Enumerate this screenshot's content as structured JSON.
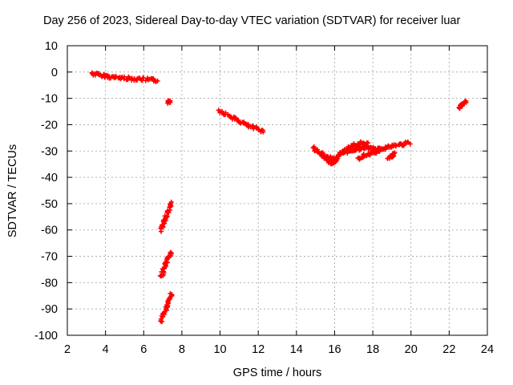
{
  "chart_data": {
    "type": "scatter",
    "title": "Day 256 of 2023, Sidereal Day-to-day VTEC variation (SDTVAR) for receiver luar",
    "xlabel": "GPS time / hours",
    "ylabel": "SDTVAR / TECUs",
    "xlim": [
      2,
      24
    ],
    "ylim": [
      -100,
      10
    ],
    "x_ticks": [
      "2",
      "4",
      "6",
      "8",
      "10",
      "12",
      "14",
      "16",
      "18",
      "20",
      "22",
      "24"
    ],
    "y_ticks": [
      "10",
      "0",
      "-10",
      "-20",
      "-30",
      "-40",
      "-50",
      "-60",
      "-70",
      "-80",
      "-90",
      "-100"
    ],
    "grid": true,
    "marker": "cross",
    "series_color": "#ff0000",
    "series": [
      {
        "segments": [
          {
            "x": [
              3.3,
              3.6,
              4.0,
              4.4,
              4.8,
              5.2,
              5.6,
              6.0,
              6.4,
              6.7
            ],
            "y": [
              -0.5,
              -1.0,
              -1.5,
              -2.0,
              -2.2,
              -2.4,
              -2.6,
              -2.8,
              -3.0,
              -3.2
            ]
          },
          {
            "x": [
              7.3,
              7.4
            ],
            "y": [
              -11.5,
              -11.0
            ]
          },
          {
            "x": [
              9.9,
              10.3,
              10.7,
              11.1,
              11.5,
              11.9,
              12.3
            ],
            "y": [
              -14.5,
              -16.0,
              -17.5,
              -19.0,
              -20.5,
              -21.5,
              -22.5
            ]
          },
          {
            "x": [
              6.9,
              7.05,
              7.2,
              7.35,
              7.45
            ],
            "y": [
              -60.0,
              -57.0,
              -54.5,
              -52.0,
              -50.0
            ]
          },
          {
            "x": [
              6.9,
              7.05,
              7.2,
              7.35,
              7.45
            ],
            "y": [
              -78.0,
              -75.0,
              -72.5,
              -70.0,
              -68.5
            ]
          },
          {
            "x": [
              6.9,
              7.05,
              7.2,
              7.35,
              7.45
            ],
            "y": [
              -95.0,
              -92.0,
              -89.0,
              -86.5,
              -84.5
            ]
          },
          {
            "x": [
              14.9,
              15.2,
              15.5,
              15.8,
              16.1,
              16.4,
              16.7,
              17.0,
              17.3,
              17.6,
              17.9,
              18.2,
              18.5,
              18.8,
              19.1,
              19.5,
              19.9
            ],
            "y": [
              -29.0,
              -30.5,
              -32.0,
              -33.0,
              -32.5,
              -31.0,
              -30.0,
              -29.5,
              -29.0,
              -28.5,
              -29.0,
              -29.5,
              -29.0,
              -28.5,
              -28.0,
              -27.5,
              -27.0
            ]
          },
          {
            "x": [
              15.3,
              15.6,
              15.9,
              16.2
            ],
            "y": [
              -31.5,
              -33.5,
              -34.5,
              -33.0
            ]
          },
          {
            "x": [
              16.2,
              16.5,
              16.8,
              17.1,
              17.4,
              17.7
            ],
            "y": [
              -31.5,
              -30.0,
              -28.5,
              -27.5,
              -27.0,
              -27.5
            ]
          },
          {
            "x": [
              17.2,
              17.5,
              17.8,
              18.1,
              18.4
            ],
            "y": [
              -33.0,
              -32.0,
              -31.0,
              -30.5,
              -30.0
            ]
          },
          {
            "x": [
              18.8,
              19.0,
              19.1
            ],
            "y": [
              -32.5,
              -32.0,
              -31.0
            ]
          },
          {
            "x": [
              22.5,
              22.7,
              22.9
            ],
            "y": [
              -13.5,
              -12.5,
              -11.5
            ]
          }
        ]
      }
    ]
  }
}
